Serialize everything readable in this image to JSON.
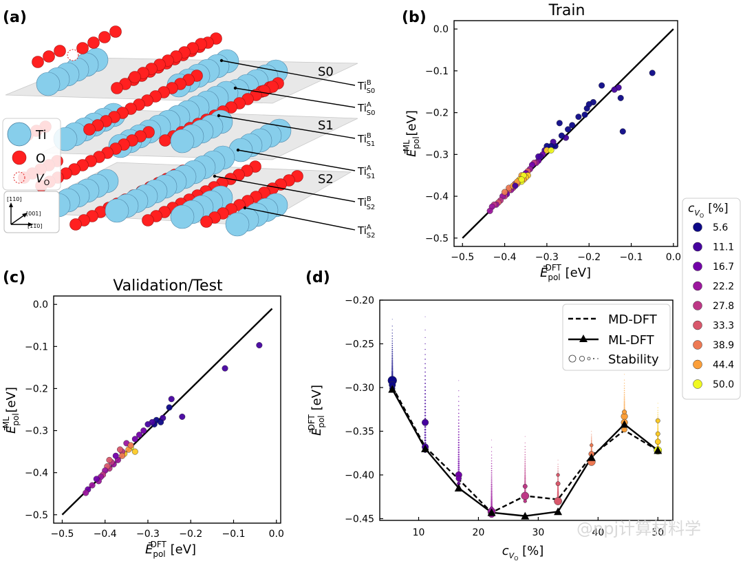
{
  "panels": {
    "a": {
      "label": "(a)",
      "surfaces": [
        "S0",
        "S1",
        "S2"
      ],
      "site_labels": [
        {
          "main": "Ti",
          "sup": "B",
          "sub": "S0"
        },
        {
          "main": "Ti",
          "sup": "A",
          "sub": "S0"
        },
        {
          "main": "Ti",
          "sup": "B",
          "sub": "S1"
        },
        {
          "main": "Ti",
          "sup": "A",
          "sub": "S1"
        },
        {
          "main": "Ti",
          "sup": "B",
          "sub": "S2"
        },
        {
          "main": "Ti",
          "sup": "A",
          "sub": "S2"
        }
      ],
      "legend": {
        "ti": "Ti",
        "o": "O",
        "v_main": "V",
        "v_sub": "O"
      },
      "axes_labels": {
        "a110": "[110]",
        "a001": "[001]",
        "a1m10": "[1̅1̅0]"
      },
      "colors": {
        "ti": "#87ceeb",
        "o": "#ff2020",
        "plane": "#d8d8d8"
      }
    },
    "b": {
      "label": "(b)"
    },
    "c": {
      "label": "(c)"
    },
    "d": {
      "label": "(d)"
    }
  },
  "colorbar": {
    "title_main": "c",
    "title_sub_v": "V",
    "title_sub_o": "O",
    "title_unit": "[%]",
    "entries": [
      {
        "value": "5.6",
        "color": "#0d0887"
      },
      {
        "value": "11.1",
        "color": "#46039f"
      },
      {
        "value": "16.7",
        "color": "#7201a8"
      },
      {
        "value": "22.2",
        "color": "#9c179e"
      },
      {
        "value": "27.8",
        "color": "#bd3786"
      },
      {
        "value": "33.3",
        "color": "#d8576b"
      },
      {
        "value": "38.9",
        "color": "#ed7953"
      },
      {
        "value": "44.4",
        "color": "#fb9f3a"
      },
      {
        "value": "50.0",
        "color": "#fdca26"
      }
    ],
    "last_color": "#f0f921"
  },
  "chart_data": [
    {
      "id": "b",
      "type": "scatter",
      "title": "Train",
      "xlabel": {
        "main": "Ē",
        "sub": "pol",
        "sup": "DFT",
        "unit": " [eV]"
      },
      "ylabel": {
        "main": "Ē",
        "sub": "pol",
        "sup": "ML",
        "unit": " [eV]"
      },
      "xlim": [
        -0.52,
        0.01
      ],
      "ylim": [
        -0.52,
        0.02
      ],
      "xticks": [
        -0.5,
        -0.4,
        -0.3,
        -0.2,
        -0.1,
        0.0
      ],
      "yticks": [
        -0.5,
        -0.4,
        -0.3,
        -0.2,
        -0.1,
        0.0
      ],
      "tick_labels": [
        "−0.5",
        "−0.4",
        "−0.3",
        "−0.2",
        "−0.1",
        "0.0"
      ],
      "parity_line": [
        [
          -0.5,
          -0.5
        ],
        [
          0.0,
          0.0
        ]
      ],
      "points": [
        [
          -0.05,
          -0.105,
          0
        ],
        [
          -0.12,
          -0.245,
          0
        ],
        [
          -0.125,
          -0.165,
          0
        ],
        [
          -0.13,
          -0.14,
          1
        ],
        [
          -0.14,
          -0.145,
          1
        ],
        [
          -0.17,
          -0.135,
          0
        ],
        [
          -0.19,
          -0.175,
          0
        ],
        [
          -0.205,
          -0.19,
          0
        ],
        [
          -0.2,
          -0.18,
          0
        ],
        [
          -0.21,
          -0.205,
          0
        ],
        [
          -0.225,
          -0.21,
          0
        ],
        [
          -0.24,
          -0.23,
          0
        ],
        [
          -0.25,
          -0.24,
          0
        ],
        [
          -0.255,
          -0.26,
          1
        ],
        [
          -0.265,
          -0.255,
          0
        ],
        [
          -0.27,
          -0.225,
          0
        ],
        [
          -0.28,
          -0.28,
          0
        ],
        [
          -0.285,
          -0.27,
          1
        ],
        [
          -0.29,
          -0.28,
          0
        ],
        [
          -0.3,
          -0.28,
          0
        ],
        [
          -0.305,
          -0.29,
          1
        ],
        [
          -0.31,
          -0.3,
          2
        ],
        [
          -0.315,
          -0.305,
          1
        ],
        [
          -0.32,
          -0.315,
          2
        ],
        [
          -0.325,
          -0.32,
          3
        ],
        [
          -0.33,
          -0.32,
          4
        ],
        [
          -0.335,
          -0.325,
          2
        ],
        [
          -0.34,
          -0.335,
          3
        ],
        [
          -0.345,
          -0.34,
          5
        ],
        [
          -0.35,
          -0.345,
          2
        ],
        [
          -0.345,
          -0.35,
          8
        ],
        [
          -0.35,
          -0.355,
          8
        ],
        [
          -0.355,
          -0.36,
          7
        ],
        [
          -0.36,
          -0.365,
          9
        ],
        [
          -0.36,
          -0.35,
          7
        ],
        [
          -0.365,
          -0.36,
          8
        ],
        [
          -0.37,
          -0.37,
          6
        ],
        [
          -0.375,
          -0.37,
          5
        ],
        [
          -0.38,
          -0.38,
          4
        ],
        [
          -0.385,
          -0.385,
          3
        ],
        [
          -0.39,
          -0.385,
          5
        ],
        [
          -0.395,
          -0.395,
          2
        ],
        [
          -0.4,
          -0.4,
          4
        ],
        [
          -0.405,
          -0.4,
          3
        ],
        [
          -0.41,
          -0.41,
          4
        ],
        [
          -0.415,
          -0.415,
          5
        ],
        [
          -0.42,
          -0.42,
          3
        ],
        [
          -0.425,
          -0.42,
          4
        ],
        [
          -0.43,
          -0.425,
          3
        ],
        [
          -0.435,
          -0.435,
          3
        ],
        [
          -0.4,
          -0.39,
          6
        ],
        [
          -0.39,
          -0.38,
          6
        ],
        [
          -0.38,
          -0.375,
          7
        ],
        [
          -0.37,
          -0.365,
          7
        ],
        [
          -0.3,
          -0.29,
          8
        ],
        [
          -0.29,
          -0.29,
          9
        ],
        [
          -0.355,
          -0.35,
          9
        ],
        [
          -0.36,
          -0.36,
          9
        ],
        [
          -0.375,
          -0.375,
          1
        ],
        [
          -0.32,
          -0.305,
          1
        ]
      ]
    },
    {
      "id": "c",
      "type": "scatter",
      "title": "Validation/Test",
      "xlabel": {
        "main": "Ē",
        "sub": "pol",
        "sup": "DFT",
        "unit": " [eV]"
      },
      "ylabel": {
        "main": "Ē",
        "sub": "pol",
        "sup": "ML",
        "unit": " [eV]"
      },
      "xlim": [
        -0.52,
        0.01
      ],
      "ylim": [
        -0.52,
        0.02
      ],
      "xticks": [
        -0.5,
        -0.4,
        -0.3,
        -0.2,
        -0.1,
        0.0
      ],
      "yticks": [
        -0.5,
        -0.4,
        -0.3,
        -0.2,
        -0.1,
        0.0
      ],
      "tick_labels": [
        "−0.5",
        "−0.4",
        "−0.3",
        "−0.2",
        "−0.1",
        "0.0"
      ],
      "parity_line": [
        [
          -0.5,
          -0.5
        ],
        [
          -0.01,
          -0.01
        ]
      ],
      "points": [
        [
          -0.04,
          -0.097,
          1
        ],
        [
          -0.12,
          -0.152,
          1
        ],
        [
          -0.22,
          -0.267,
          1
        ],
        [
          -0.245,
          -0.225,
          1
        ],
        [
          -0.25,
          -0.245,
          0
        ],
        [
          -0.265,
          -0.27,
          1
        ],
        [
          -0.27,
          -0.28,
          0
        ],
        [
          -0.28,
          -0.275,
          0
        ],
        [
          -0.285,
          -0.285,
          0
        ],
        [
          -0.29,
          -0.28,
          1
        ],
        [
          -0.3,
          -0.285,
          1
        ],
        [
          -0.31,
          -0.3,
          2
        ],
        [
          -0.32,
          -0.31,
          2
        ],
        [
          -0.33,
          -0.35,
          8
        ],
        [
          -0.34,
          -0.34,
          9
        ],
        [
          -0.345,
          -0.345,
          7
        ],
        [
          -0.35,
          -0.33,
          3
        ],
        [
          -0.355,
          -0.355,
          8
        ],
        [
          -0.36,
          -0.35,
          4
        ],
        [
          -0.365,
          -0.345,
          5
        ],
        [
          -0.37,
          -0.37,
          3
        ],
        [
          -0.375,
          -0.36,
          2
        ],
        [
          -0.38,
          -0.38,
          3
        ],
        [
          -0.385,
          -0.375,
          4
        ],
        [
          -0.39,
          -0.39,
          4
        ],
        [
          -0.395,
          -0.385,
          5
        ],
        [
          -0.4,
          -0.395,
          3
        ],
        [
          -0.405,
          -0.405,
          4
        ],
        [
          -0.41,
          -0.41,
          3
        ],
        [
          -0.415,
          -0.42,
          3
        ],
        [
          -0.42,
          -0.415,
          2
        ],
        [
          -0.43,
          -0.43,
          3
        ],
        [
          -0.44,
          -0.44,
          2
        ],
        [
          -0.445,
          -0.448,
          3
        ],
        [
          -0.36,
          -0.36,
          6
        ],
        [
          -0.34,
          -0.335,
          6
        ],
        [
          -0.39,
          -0.37,
          5
        ],
        [
          -0.33,
          -0.32,
          2
        ]
      ]
    },
    {
      "id": "d",
      "type": "line",
      "xlabel": {
        "main": "c",
        "sub": "V",
        "subsub": "O",
        "unit": " [%]"
      },
      "ylabel": {
        "main": "Ē",
        "sub": "pol",
        "sup": "DFT",
        "unit": " [eV]"
      },
      "xlim": [
        3.5,
        52.5
      ],
      "ylim": [
        -0.452,
        -0.2
      ],
      "xticks": [
        10,
        20,
        30,
        40,
        50
      ],
      "xtick_labels": [
        "10",
        "20",
        "30",
        "40",
        "50"
      ],
      "yticks": [
        -0.45,
        -0.4,
        -0.35,
        -0.3,
        -0.25,
        -0.2
      ],
      "ytick_labels": [
        "−0.45",
        "−0.40",
        "−0.35",
        "−0.30",
        "−0.25",
        "−0.20"
      ],
      "legend": [
        "MD-DFT",
        "ML-DFT",
        "Stability"
      ],
      "series": [
        {
          "name": "MD-DFT",
          "style": "dashed",
          "x": [
            5.6,
            11.1,
            16.7,
            22.2,
            27.8,
            33.3,
            38.9,
            44.4,
            50.0
          ],
          "y": [
            -0.299,
            -0.368,
            -0.405,
            -0.443,
            -0.424,
            -0.428,
            -0.378,
            -0.349,
            -0.372
          ]
        },
        {
          "name": "ML-DFT",
          "style": "solid-triangle",
          "x": [
            5.6,
            11.1,
            16.7,
            22.2,
            27.8,
            33.3,
            38.9,
            44.4,
            50.0
          ],
          "y": [
            -0.302,
            -0.37,
            -0.415,
            -0.443,
            -0.447,
            -0.442,
            -0.38,
            -0.342,
            -0.372
          ]
        }
      ],
      "stability_points": [
        [
          5.6,
          -0.292,
          8,
          0
        ],
        [
          5.6,
          -0.297,
          6,
          0
        ],
        [
          5.6,
          -0.301,
          5,
          0
        ],
        [
          11.1,
          -0.34,
          6,
          1
        ],
        [
          11.1,
          -0.368,
          6,
          1
        ],
        [
          11.1,
          -0.372,
          4,
          1
        ],
        [
          16.7,
          -0.4,
          6,
          2
        ],
        [
          16.7,
          -0.404,
          5,
          2
        ],
        [
          16.7,
          -0.41,
          3,
          2
        ],
        [
          22.2,
          -0.442,
          7,
          3
        ],
        [
          22.2,
          -0.445,
          6,
          3
        ],
        [
          22.2,
          -0.438,
          3,
          3
        ],
        [
          27.8,
          -0.424,
          7,
          4
        ],
        [
          27.8,
          -0.413,
          4,
          4
        ],
        [
          27.8,
          -0.43,
          3,
          4
        ],
        [
          33.3,
          -0.43,
          7,
          5
        ],
        [
          33.3,
          -0.41,
          4,
          5
        ],
        [
          33.3,
          -0.4,
          3,
          5
        ],
        [
          38.9,
          -0.385,
          7,
          6
        ],
        [
          38.9,
          -0.376,
          5,
          6
        ],
        [
          38.9,
          -0.366,
          3,
          6
        ],
        [
          44.4,
          -0.333,
          6,
          7
        ],
        [
          44.4,
          -0.34,
          6,
          7
        ],
        [
          44.4,
          -0.348,
          5,
          7
        ],
        [
          44.4,
          -0.328,
          4,
          7
        ],
        [
          50.0,
          -0.372,
          7,
          9
        ],
        [
          50.0,
          -0.362,
          5,
          8
        ],
        [
          50.0,
          -0.353,
          4,
          8
        ],
        [
          50.0,
          -0.338,
          4,
          8
        ]
      ],
      "dot_columns": [
        {
          "x": 5.6,
          "top": -0.222,
          "bottom": -0.3,
          "color": 0
        },
        {
          "x": 11.1,
          "top": -0.219,
          "bottom": -0.372,
          "color": 1
        },
        {
          "x": 16.7,
          "top": -0.292,
          "bottom": -0.41,
          "color": 2
        },
        {
          "x": 22.2,
          "top": -0.36,
          "bottom": -0.445,
          "color": 3
        },
        {
          "x": 27.8,
          "top": -0.356,
          "bottom": -0.43,
          "color": 4
        },
        {
          "x": 33.3,
          "top": -0.383,
          "bottom": -0.43,
          "color": 5
        },
        {
          "x": 38.9,
          "top": -0.35,
          "bottom": -0.386,
          "color": 6
        },
        {
          "x": 44.4,
          "top": -0.285,
          "bottom": -0.35,
          "color": 7
        },
        {
          "x": 50.0,
          "top": -0.318,
          "bottom": -0.37,
          "color": 8
        }
      ]
    }
  ],
  "watermark": "@npj计算材料学"
}
